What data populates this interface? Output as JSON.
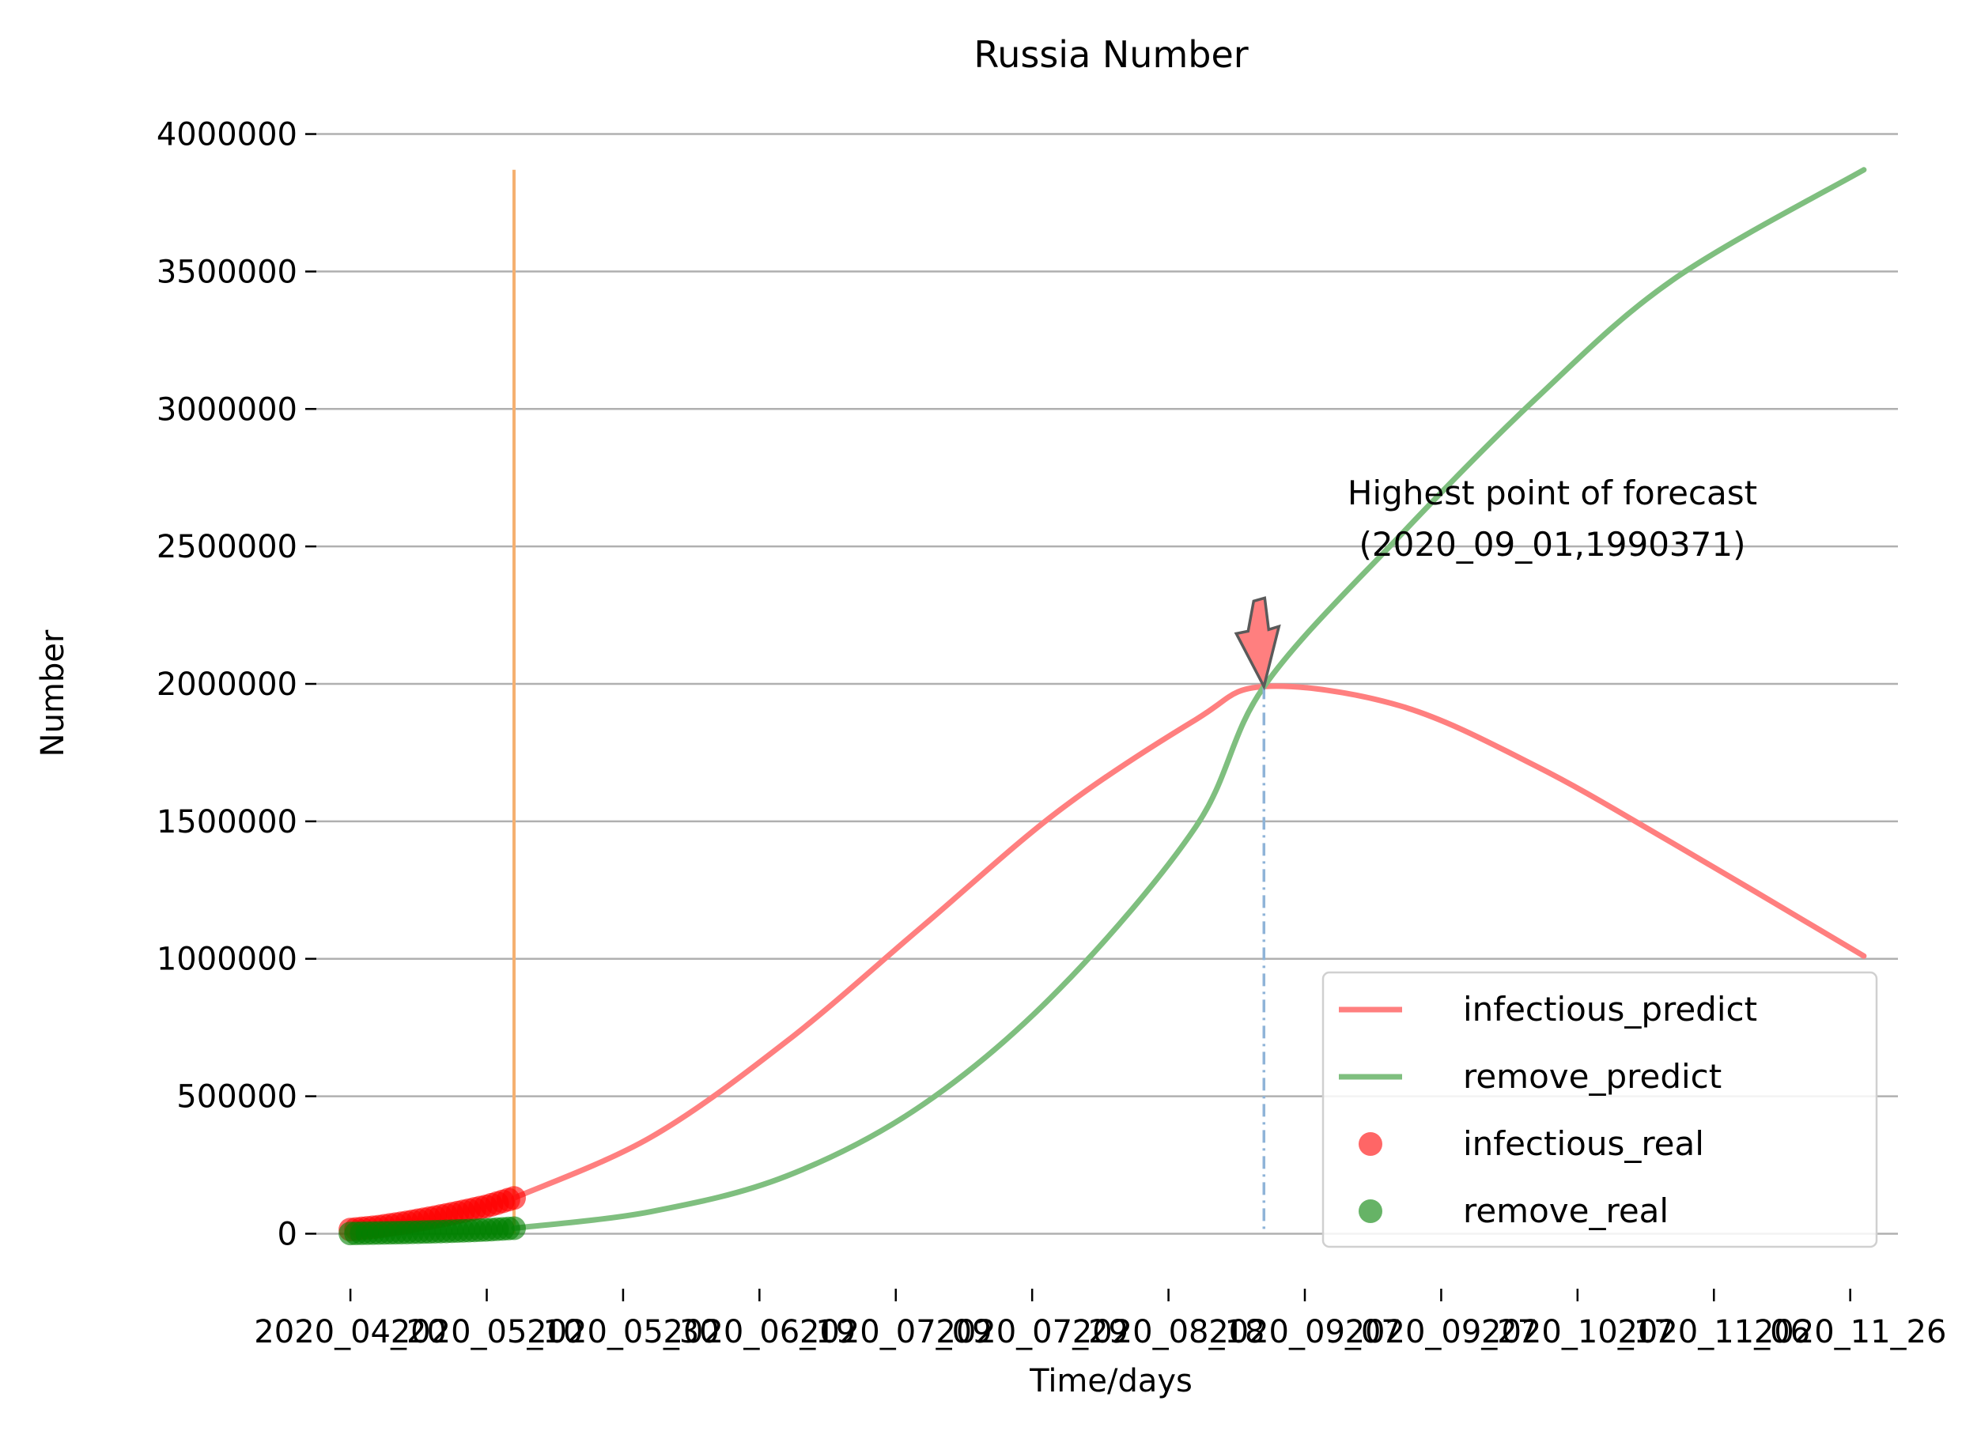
{
  "chart_data": {
    "type": "line",
    "title": "Russia Number",
    "xlabel": "Time/days",
    "ylabel": "Number",
    "ylim": [
      -200000,
      4200000
    ],
    "yticks": [
      0,
      500000,
      1000000,
      1500000,
      2000000,
      2500000,
      3000000,
      3500000,
      4000000
    ],
    "ytick_labels": [
      "0",
      "500000",
      "1000000",
      "1500000",
      "2000000",
      "2500000",
      "3000000",
      "3500000",
      "4000000"
    ],
    "xticks": [
      "2020_04_20",
      "2020_05_10",
      "2020_05_30",
      "2020_06_19",
      "2020_07_09",
      "2020_07_29",
      "2020_08_18",
      "2020_09_07",
      "2020_09_27",
      "2020_10_17",
      "2020_11_06",
      "2020_11_26"
    ],
    "x_start": "2020_04_20",
    "x_end": "2020_11_28",
    "grid": "y",
    "legend_position": "lower-right",
    "real_data_end": "2020_05_14",
    "series": [
      {
        "name": "infectious_predict",
        "kind": "line",
        "color": "#ff7f7f",
        "x": [
          "2020_05_14",
          "2020_06_03",
          "2020_06_23",
          "2020_07_13",
          "2020_08_02",
          "2020_08_22",
          "2020_09_01",
          "2020_09_21",
          "2020_10_11",
          "2020_10_31",
          "2020_11_28"
        ],
        "y": [
          130000,
          350000,
          700000,
          1120000,
          1540000,
          1870000,
          1990371,
          1920000,
          1700000,
          1420000,
          1010000
        ]
      },
      {
        "name": "remove_predict",
        "kind": "line",
        "color": "#7fbf7f",
        "x": [
          "2020_05_14",
          "2020_06_03",
          "2020_06_23",
          "2020_07_13",
          "2020_08_02",
          "2020_08_22",
          "2020_09_01",
          "2020_09_21",
          "2020_10_11",
          "2020_10_31",
          "2020_11_28"
        ],
        "y": [
          20000,
          80000,
          210000,
          470000,
          890000,
          1480000,
          1990000,
          2540000,
          3040000,
          3470000,
          3870000
        ]
      },
      {
        "name": "infectious_real",
        "kind": "scatter",
        "color": "#ff0000",
        "x": [
          "2020_04_20",
          "2020_04_24",
          "2020_04_28",
          "2020_05_02",
          "2020_05_06",
          "2020_05_10",
          "2020_05_14"
        ],
        "y": [
          15000,
          25000,
          40000,
          58000,
          78000,
          100000,
          130000
        ]
      },
      {
        "name": "remove_real",
        "kind": "scatter",
        "color": "#008000",
        "x": [
          "2020_04_20",
          "2020_04_24",
          "2020_04_28",
          "2020_05_02",
          "2020_05_06",
          "2020_05_10",
          "2020_05_14"
        ],
        "y": [
          1000,
          2500,
          4500,
          7000,
          10000,
          14000,
          20000
        ]
      }
    ],
    "annotation": {
      "text_line1": "Highest point of forecast",
      "text_line2": "(2020_09_01,1990371)",
      "x": "2020_09_01",
      "y": 1990371
    }
  }
}
